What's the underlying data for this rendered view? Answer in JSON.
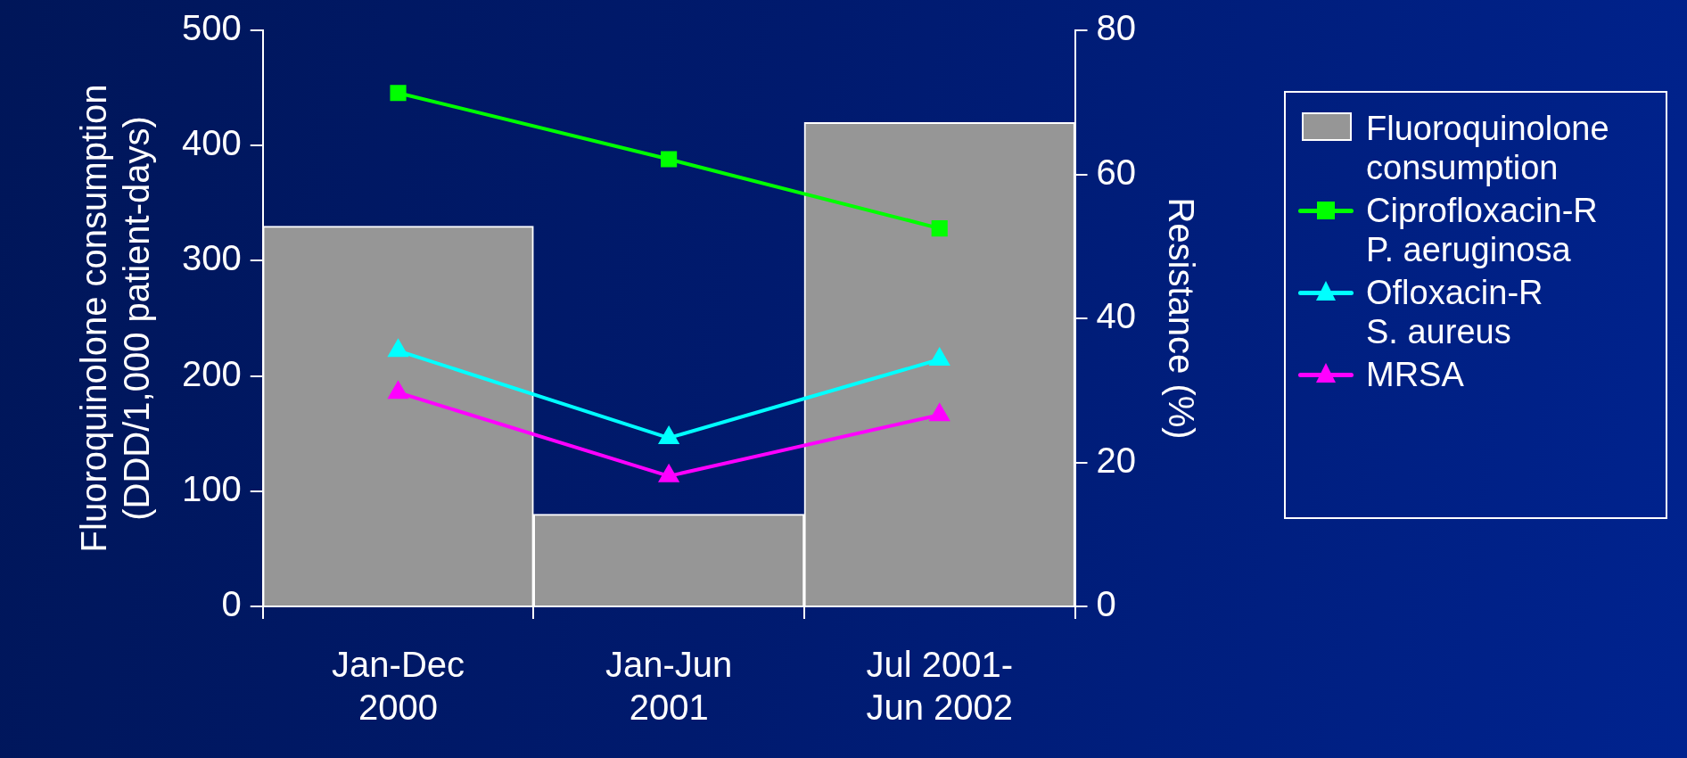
{
  "chart_data": {
    "type": "bar",
    "categories": [
      "Jan-Dec\n2000",
      "Jan-Jun\n2001",
      "Jul 2001-\nJun 2002"
    ],
    "ylabel": "Fluoroquinolone consumption\n(DDD/1,000 patient-days)",
    "y2label": "Resistance (%)",
    "ylim": [
      0,
      500
    ],
    "yticks": [
      0,
      100,
      200,
      300,
      400,
      500
    ],
    "y2lim": [
      0,
      80
    ],
    "y2ticks": [
      0,
      20,
      40,
      60,
      80
    ],
    "grid": false,
    "legend": "right",
    "series": [
      {
        "name": "Fluoroquinolone\nconsumption",
        "color": "#969696",
        "values": [
          330,
          80,
          420
        ]
      },
      {
        "name": "Ciprofloxacin-R\nP. aeruginosa",
        "type": "line",
        "axis": "y2",
        "marker": "square",
        "color": "#00ff00",
        "values": [
          71.3,
          62.1,
          52.5
        ]
      },
      {
        "name": "Ofloxacin-R\nS. aureus",
        "type": "line",
        "axis": "y2",
        "marker": "triangle",
        "color": "#00ffff",
        "values": [
          35.5,
          23.4,
          34.3
        ]
      },
      {
        "name": "MRSA",
        "type": "line",
        "axis": "y2",
        "marker": "triangle",
        "color": "#ff00ff",
        "values": [
          29.7,
          18.1,
          26.6
        ]
      }
    ]
  }
}
